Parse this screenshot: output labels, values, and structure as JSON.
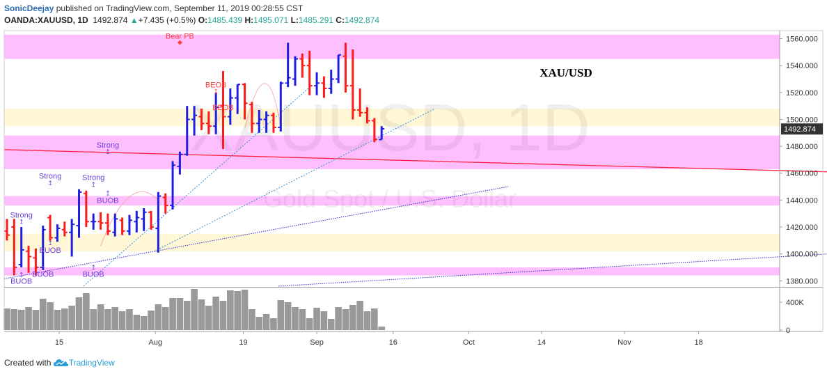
{
  "header": {
    "author": "SonicDeejay",
    "published_text": "published on TradingView.com, September 11, 2019 00:28:55 CST",
    "symbol": "OANDA:XAUUSD, 1D",
    "last": "1492.874",
    "change_arrow": "▲",
    "change": "+7.435 (+0.5%)",
    "o_label": "O:",
    "o_value": "1485.439",
    "h_label": "H:",
    "h_value": "1495.071",
    "l_label": "L:",
    "l_value": "1485.291",
    "c_label": "C:",
    "c_value": "1492.874"
  },
  "watermark": {
    "symbol": "XAUUSD, 1D",
    "description": "Gold Spot / U.S. Dollar"
  },
  "annotation_title": "XAU/USD",
  "footer": {
    "created_with": "Created with",
    "brand": "TradingView",
    "logo_icon": "tradingview-cloud-icon"
  },
  "colors": {
    "bull": "#1f1fe0",
    "bear": "#ff1a1a",
    "volume": "#999999",
    "pink_zone": "#ff80ff",
    "yellow_zone": "#ffe88a",
    "trendline": "#ff2040",
    "fan": "#2e8fdc",
    "dotted_long": "#2a2acc"
  },
  "chart_data": {
    "type": "ohlc",
    "y_ticks": [
      "1560.000",
      "1540.000",
      "1520.000",
      "1500.000",
      "1480.000",
      "1460.000",
      "1440.000",
      "1420.000",
      "1400.000",
      "1380.000"
    ],
    "last_price_label": "1492.874",
    "volume_ticks": [
      "400K",
      "0"
    ],
    "x_ticks": [
      "15",
      "Aug",
      "19",
      "Sep",
      "16",
      "Oct",
      "14",
      "Nov",
      "18"
    ],
    "ylim": [
      1376,
      1566
    ],
    "zones": [
      {
        "color": "pink",
        "y0": 1545,
        "y1": 1563
      },
      {
        "color": "yellow",
        "y0": 1495,
        "y1": 1508
      },
      {
        "color": "pink",
        "y0": 1463,
        "y1": 1488
      },
      {
        "color": "pink",
        "y0": 1436,
        "y1": 1443
      },
      {
        "color": "yellow",
        "y0": 1402,
        "y1": 1415
      },
      {
        "color": "pink",
        "y0": 1384,
        "y1": 1390
      }
    ],
    "bars": [
      {
        "o": 1417,
        "h": 1426,
        "l": 1410,
        "c": 1414,
        "v": 310
      },
      {
        "o": 1420,
        "h": 1426,
        "l": 1384,
        "c": 1390,
        "v": 300
      },
      {
        "o": 1392,
        "h": 1420,
        "l": 1390,
        "c": 1403,
        "v": 290
      },
      {
        "o": 1402,
        "h": 1406,
        "l": 1386,
        "c": 1398,
        "v": 330
      },
      {
        "o": 1397,
        "h": 1404,
        "l": 1384,
        "c": 1390,
        "v": 290
      },
      {
        "o": 1390,
        "h": 1421,
        "l": 1388,
        "c": 1418,
        "v": 450
      },
      {
        "o": 1427,
        "h": 1429,
        "l": 1410,
        "c": 1412,
        "v": 400
      },
      {
        "o": 1412,
        "h": 1422,
        "l": 1409,
        "c": 1419,
        "v": 290
      },
      {
        "o": 1418,
        "h": 1424,
        "l": 1413,
        "c": 1416,
        "v": 310
      },
      {
        "o": 1416,
        "h": 1426,
        "l": 1398,
        "c": 1422,
        "v": 350
      },
      {
        "o": 1421,
        "h": 1448,
        "l": 1412,
        "c": 1446,
        "v": 470
      },
      {
        "o": 1445,
        "h": 1447,
        "l": 1420,
        "c": 1424,
        "v": 530
      },
      {
        "o": 1424,
        "h": 1430,
        "l": 1418,
        "c": 1424,
        "v": 300
      },
      {
        "o": 1424,
        "h": 1431,
        "l": 1418,
        "c": 1423,
        "v": 370
      },
      {
        "o": 1423,
        "h": 1430,
        "l": 1414,
        "c": 1417,
        "v": 300
      },
      {
        "o": 1416,
        "h": 1430,
        "l": 1413,
        "c": 1426,
        "v": 330
      },
      {
        "o": 1425,
        "h": 1427,
        "l": 1414,
        "c": 1417,
        "v": 270
      },
      {
        "o": 1417,
        "h": 1429,
        "l": 1414,
        "c": 1425,
        "v": 300
      },
      {
        "o": 1424,
        "h": 1432,
        "l": 1416,
        "c": 1427,
        "v": 220
      },
      {
        "o": 1426,
        "h": 1434,
        "l": 1417,
        "c": 1431,
        "v": 200
      },
      {
        "o": 1431,
        "h": 1432,
        "l": 1418,
        "c": 1420,
        "v": 280
      },
      {
        "o": 1419,
        "h": 1446,
        "l": 1401,
        "c": 1443,
        "v": 370
      },
      {
        "o": 1442,
        "h": 1445,
        "l": 1430,
        "c": 1436,
        "v": 330
      },
      {
        "o": 1436,
        "h": 1469,
        "l": 1433,
        "c": 1466,
        "v": 460
      },
      {
        "o": 1465,
        "h": 1476,
        "l": 1459,
        "c": 1474,
        "v": 460
      },
      {
        "o": 1474,
        "h": 1510,
        "l": 1473,
        "c": 1500,
        "v": 420
      },
      {
        "o": 1500,
        "h": 1510,
        "l": 1488,
        "c": 1503,
        "v": 590
      },
      {
        "o": 1502,
        "h": 1508,
        "l": 1492,
        "c": 1497,
        "v": 440
      },
      {
        "o": 1497,
        "h": 1506,
        "l": 1489,
        "c": 1495,
        "v": 350
      },
      {
        "o": 1495,
        "h": 1520,
        "l": 1489,
        "c": 1509,
        "v": 480
      },
      {
        "o": 1510,
        "h": 1536,
        "l": 1478,
        "c": 1502,
        "v": 420
      },
      {
        "o": 1502,
        "h": 1523,
        "l": 1496,
        "c": 1516,
        "v": 570
      },
      {
        "o": 1516,
        "h": 1526,
        "l": 1504,
        "c": 1526,
        "v": 560
      },
      {
        "o": 1526,
        "h": 1527,
        "l": 1500,
        "c": 1512,
        "v": 580
      },
      {
        "o": 1511,
        "h": 1513,
        "l": 1490,
        "c": 1497,
        "v": 300
      },
      {
        "o": 1497,
        "h": 1507,
        "l": 1490,
        "c": 1500,
        "v": 190
      },
      {
        "o": 1500,
        "h": 1506,
        "l": 1490,
        "c": 1503,
        "v": 230
      },
      {
        "o": 1503,
        "h": 1505,
        "l": 1490,
        "c": 1494,
        "v": 170
      },
      {
        "o": 1494,
        "h": 1528,
        "l": 1491,
        "c": 1527,
        "v": 430
      },
      {
        "o": 1527,
        "h": 1557,
        "l": 1524,
        "c": 1531,
        "v": 400
      },
      {
        "o": 1530,
        "h": 1547,
        "l": 1525,
        "c": 1545,
        "v": 330
      },
      {
        "o": 1545,
        "h": 1549,
        "l": 1531,
        "c": 1540,
        "v": 300
      },
      {
        "o": 1540,
        "h": 1551,
        "l": 1518,
        "c": 1525,
        "v": 170
      },
      {
        "o": 1525,
        "h": 1535,
        "l": 1518,
        "c": 1527,
        "v": 320
      },
      {
        "o": 1527,
        "h": 1532,
        "l": 1516,
        "c": 1523,
        "v": 270
      },
      {
        "o": 1523,
        "h": 1537,
        "l": 1519,
        "c": 1530,
        "v": 160
      },
      {
        "o": 1530,
        "h": 1548,
        "l": 1527,
        "c": 1548,
        "v": 330
      },
      {
        "o": 1547,
        "h": 1557,
        "l": 1520,
        "c": 1525,
        "v": 300
      },
      {
        "o": 1525,
        "h": 1552,
        "l": 1500,
        "c": 1507,
        "v": 360
      },
      {
        "o": 1507,
        "h": 1523,
        "l": 1502,
        "c": 1505,
        "v": 420
      },
      {
        "o": 1505,
        "h": 1509,
        "l": 1497,
        "c": 1499,
        "v": 270
      },
      {
        "o": 1499,
        "h": 1501,
        "l": 1483,
        "c": 1485,
        "v": 310
      },
      {
        "o": 1485,
        "h": 1495,
        "l": 1485,
        "c": 1493,
        "v": 50
      }
    ],
    "labels": [
      {
        "text": "BUOB",
        "bar": 2,
        "price": 1380,
        "color": "purple",
        "arrow": "↥",
        "arrow_price": 1384.5
      },
      {
        "text": "Strong",
        "bar": 2,
        "price": 1429,
        "color": "purple",
        "arrow": "↥",
        "arrow_price": 1424
      },
      {
        "text": "BUOB",
        "bar": 5,
        "price": 1385,
        "color": "purple",
        "arrow": "↥",
        "arrow_price": 1389.5
      },
      {
        "text": "BUOB",
        "bar": 6,
        "price": 1403,
        "color": "purple",
        "arrow": "↥",
        "arrow_price": 1408
      },
      {
        "text": "Strong",
        "bar": 6,
        "price": 1458,
        "color": "purple",
        "arrow": "↥",
        "arrow_price": 1452.5
      },
      {
        "text": "BUOB",
        "bar": 12,
        "price": 1385,
        "color": "purple",
        "arrow": "↥",
        "arrow_price": 1390
      },
      {
        "text": "Strong",
        "bar": 12,
        "price": 1457,
        "color": "purple",
        "arrow": "↥",
        "arrow_price": 1451.5
      },
      {
        "text": "BUOB",
        "bar": 14,
        "price": 1440,
        "color": "purple",
        "arrow": "↥",
        "arrow_price": 1445
      },
      {
        "text": "Strong",
        "bar": 14,
        "price": 1481,
        "color": "purple",
        "arrow": "↥",
        "arrow_price": 1476
      },
      {
        "text": "Bear PB",
        "bar": 24,
        "price": 1562,
        "color": "red",
        "arrow": "◆",
        "arrow_price": 1557.5
      },
      {
        "text": "BEOB",
        "bar": 29,
        "price": 1526,
        "color": "red",
        "arrow": "↧",
        "arrow_price": 1520.5
      },
      {
        "text": "BEOB",
        "bar": 30,
        "price": 1509,
        "color": "red",
        "arrow": "↧",
        "arrow_price": 1503.5
      }
    ]
  }
}
